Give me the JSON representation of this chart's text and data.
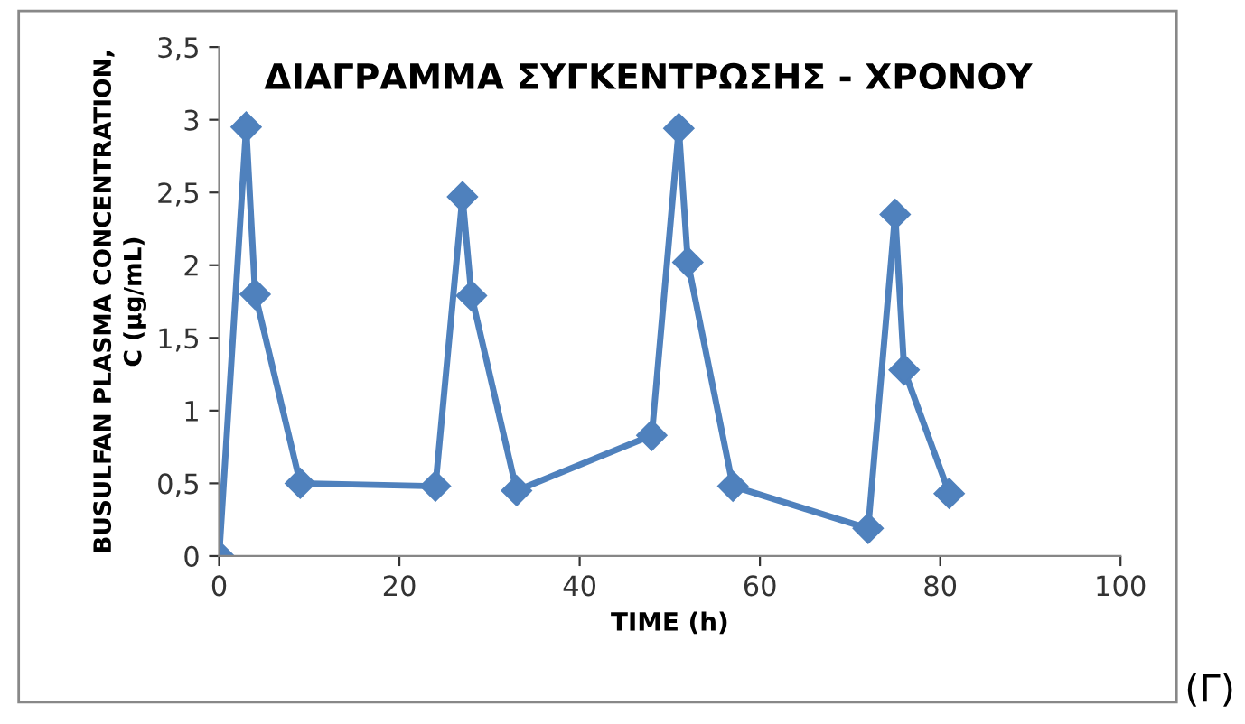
{
  "chart_data": {
    "type": "line",
    "title": "ΔΙΑΓΡΑΜΜΑ ΣΥΓΚΕΝΤΡΩΣΗΣ - ΧΡΟΝΟΥ",
    "xlabel": "TIME (h)",
    "ylabel": "BUSULFAN PLASMA CONCENTRATION,\nC (μg/mL)",
    "annotations": [
      "(Γ)"
    ],
    "x": [
      0,
      3,
      4,
      9,
      24,
      27,
      28,
      33,
      48,
      51,
      52,
      57,
      72,
      75,
      76,
      81
    ],
    "series": [
      {
        "color": "#4f81bd",
        "values": [
          0,
          2.95,
          1.8,
          0.5,
          0.48,
          2.47,
          1.79,
          0.45,
          0.83,
          2.94,
          2.02,
          0.48,
          0.19,
          2.35,
          1.28,
          0.43
        ]
      }
    ],
    "xlim": [
      0,
      100
    ],
    "xticks": [
      0,
      20,
      40,
      60,
      80,
      100
    ],
    "ylim": [
      0,
      3.5
    ],
    "yticks": [
      0,
      {
        "value": 0.5,
        "label": "0,5"
      },
      1,
      {
        "value": 1.5,
        "label": "1,5"
      },
      2,
      {
        "value": 2.5,
        "label": "2,5"
      },
      3,
      {
        "value": 3.5,
        "label": "3,5"
      }
    ],
    "marker": "diamond",
    "line_style": "solid",
    "grid": false,
    "legend": false
  }
}
